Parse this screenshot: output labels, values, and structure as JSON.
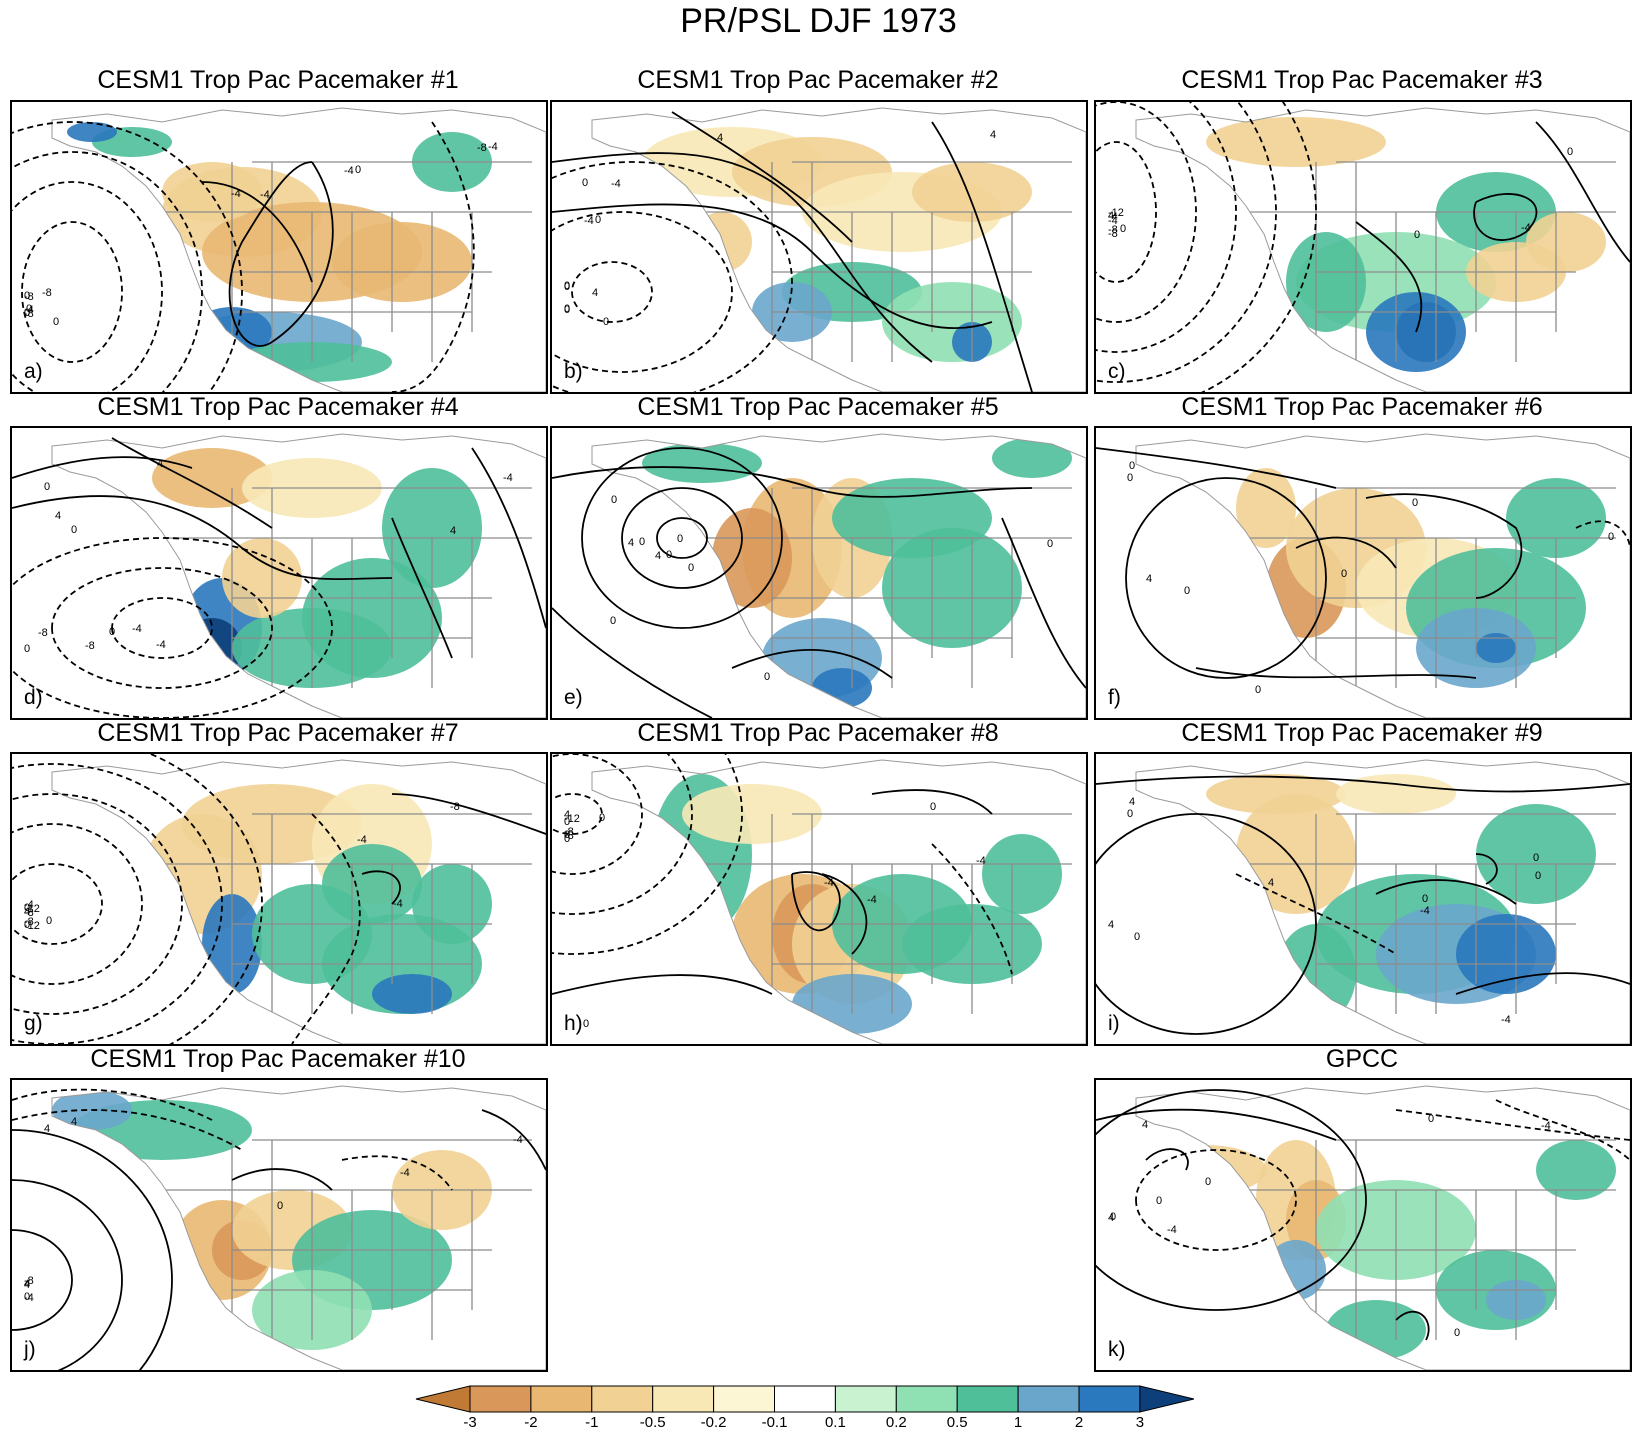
{
  "title": "PR/PSL DJF 1973",
  "panels": [
    {
      "title": "CESM1 Trop Pac Pacemaker #1",
      "letter": "a)"
    },
    {
      "title": "CESM1 Trop Pac Pacemaker #2",
      "letter": "b)"
    },
    {
      "title": "CESM1 Trop Pac Pacemaker #3",
      "letter": "c)"
    },
    {
      "title": "CESM1 Trop Pac Pacemaker #4",
      "letter": "d)"
    },
    {
      "title": "CESM1 Trop Pac Pacemaker #5",
      "letter": "e)"
    },
    {
      "title": "CESM1 Trop Pac Pacemaker #6",
      "letter": "f)"
    },
    {
      "title": "CESM1 Trop Pac Pacemaker #7",
      "letter": "g)"
    },
    {
      "title": "CESM1 Trop Pac Pacemaker #8",
      "letter": "h)"
    },
    {
      "title": "CESM1 Trop Pac Pacemaker #9",
      "letter": "i)"
    },
    {
      "title": "CESM1 Trop Pac Pacemaker #10",
      "letter": "j)"
    },
    {
      "title": "GPCC",
      "letter": "k)"
    }
  ],
  "colorbar": {
    "labels": [
      "-3",
      "-2",
      "-1",
      "-0.5",
      "-0.2",
      "-0.1",
      "0.1",
      "0.2",
      "0.5",
      "1",
      "2",
      "3"
    ],
    "colors": [
      "#c17a36",
      "#d9985a",
      "#e8b872",
      "#f1d294",
      "#f8e8b6",
      "#fdf6d4",
      "#ffffff",
      "#c9f2d0",
      "#8fe0b2",
      "#4fbf9a",
      "#6aa6cc",
      "#2a78bd",
      "#0d3f7a"
    ]
  },
  "contour_labels": {
    "a": [
      "-8",
      "-4",
      "-8",
      "-8",
      "-4",
      "-8",
      "-4",
      "0",
      "0",
      "0",
      "0",
      "0",
      "-4",
      "-4"
    ],
    "b": [
      "4",
      "0",
      "0",
      "-4",
      "-4",
      "4",
      "4",
      "0",
      "0",
      "0",
      "0",
      "0"
    ],
    "c": [
      "-12",
      "-8",
      "-4",
      "-8",
      "-4",
      "-4",
      "0",
      "0",
      "0",
      "4"
    ],
    "d": [
      "-4",
      "-8",
      "-8",
      "0",
      "0",
      "4",
      "4",
      "-4",
      "-4",
      "0",
      "0",
      "4"
    ],
    "e": [
      "0",
      "4",
      "4",
      "0",
      "0",
      "0",
      "0",
      "0",
      "0",
      "0"
    ],
    "f": [
      "4",
      "0",
      "0",
      "0",
      "0",
      "0",
      "0",
      "0"
    ],
    "g": [
      "-4",
      "-8",
      "-12",
      "-12",
      "-8",
      "-4",
      "-8",
      "-4",
      "0",
      "0",
      "0",
      "4"
    ],
    "h": [
      "4",
      "-8",
      "-12",
      "-8",
      "-4",
      "-4",
      "0",
      "0",
      "-4",
      "0",
      "0",
      "0",
      "0"
    ],
    "i": [
      "4",
      "4",
      "0",
      "0",
      "4",
      "-4",
      "0",
      "0",
      "-4",
      "0"
    ],
    "j": [
      "-8",
      "-4",
      "4",
      "4",
      "4",
      "0",
      "-4",
      "-4",
      "0",
      "4"
    ],
    "k": [
      "0",
      "4",
      "4",
      "0",
      "0",
      "-4",
      "0",
      "-4",
      "0"
    ]
  }
}
